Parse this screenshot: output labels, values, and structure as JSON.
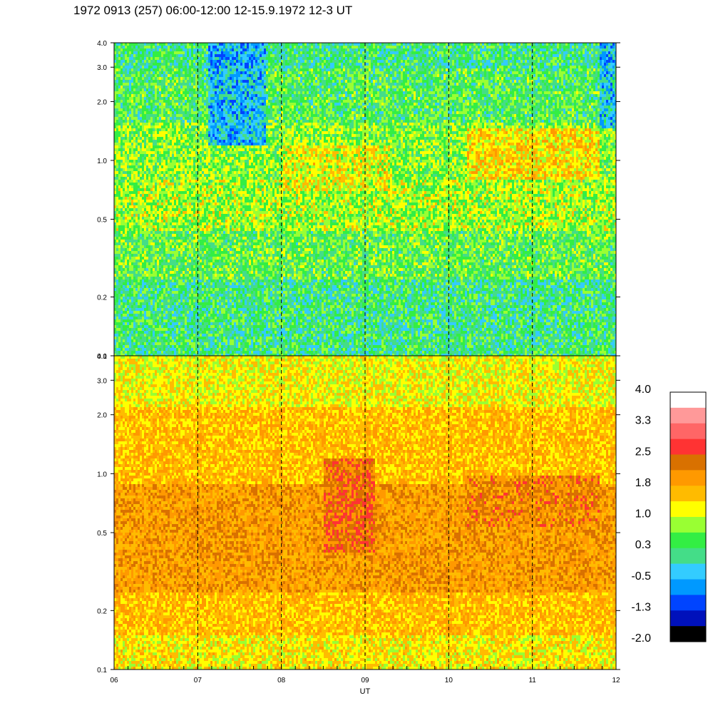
{
  "title": "1972 0913 (257) 06:00-12:00 12-15.9.1972  12-3 UT",
  "chart_data": {
    "type": "heatmap",
    "title": "1972 0913 (257) 06:00-12:00 12-15.9.1972  12-3 UT",
    "xlabel": "UT",
    "ylabel": "",
    "x_tick_labels": [
      "06",
      "07",
      "08",
      "09",
      "10",
      "11",
      "12"
    ],
    "xlim": [
      6,
      12
    ],
    "y_scale": "log",
    "y_tick_values": [
      0.1,
      0.2,
      0.5,
      1.0,
      2.0,
      3.0,
      4.0
    ],
    "y_tick_labels": [
      "0.1",
      "0.2",
      "0.5",
      "1.0",
      "2.0",
      "3.0",
      "4.0"
    ],
    "ylim": [
      0.1,
      4.0
    ],
    "panels": [
      {
        "name": "",
        "dominant_level": 0.6,
        "features": "green/yellow with blue streaks near 07:30; yellow-orange bands around 1.0 after 10:15"
      },
      {
        "name": "",
        "dominant_level": 1.6,
        "features": "orange/yellow; darker orange bands 0.5-1.0 around 08:40-09:00 and 10:20-11:40"
      }
    ],
    "gridlines_vertical_dashed": [
      "07",
      "08",
      "09",
      "10",
      "11"
    ],
    "colorbar": {
      "labels": [
        "4.0",
        "3.3",
        "2.5",
        "1.8",
        "1.0",
        "0.3",
        "-0.5",
        "-1.3",
        "-2.0"
      ],
      "range": [
        -2.0,
        4.0
      ],
      "colors": [
        "#ffffff",
        "#ff9999",
        "#ff6666",
        "#ff3333",
        "#d97100",
        "#ff9900",
        "#ffbb00",
        "#ffff00",
        "#99ff33",
        "#33ee44",
        "#44dd88",
        "#33ccff",
        "#0099ff",
        "#0044ff",
        "#0011bb",
        "#000000"
      ]
    }
  }
}
